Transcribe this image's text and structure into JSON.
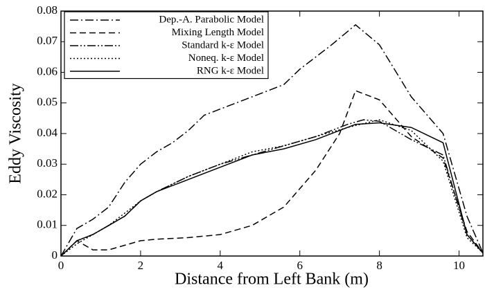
{
  "chart_data": {
    "type": "line",
    "xlabel": "Distance from Left Bank (m)",
    "ylabel": "Eddy Viscosity",
    "xlim": [
      0,
      10.6
    ],
    "ylim": [
      0,
      0.08
    ],
    "xticks": [
      0,
      2,
      4,
      6,
      8,
      10
    ],
    "yticks": [
      0,
      0.01,
      0.02,
      0.03,
      0.04,
      0.05,
      0.06,
      0.07,
      0.08
    ],
    "legend": "upper left",
    "series": [
      {
        "name": "Dep.-A. Parabolic Model",
        "color": "#000000",
        "dash": "dashdot",
        "x": [
          0,
          0.4,
          0.8,
          1.2,
          1.6,
          2,
          2.4,
          2.8,
          3.2,
          3.6,
          4,
          4.4,
          4.8,
          5.2,
          5.6,
          6,
          6.4,
          6.8,
          7.4,
          8,
          8.8,
          9.6,
          10.2,
          10.6
        ],
        "values": [
          0,
          0.009,
          0.012,
          0.016,
          0.024,
          0.03,
          0.034,
          0.037,
          0.041,
          0.046,
          0.048,
          0.05,
          0.052,
          0.054,
          0.056,
          0.061,
          0.065,
          0.069,
          0.0755,
          0.069,
          0.052,
          0.04,
          0.013,
          0.001
        ]
      },
      {
        "name": "Mixing Length Model",
        "color": "#000000",
        "dash": "dashed",
        "x": [
          0,
          0.4,
          0.8,
          1.2,
          2,
          2.4,
          3.2,
          4,
          4.8,
          5.6,
          6.4,
          7,
          7.4,
          8,
          8.8,
          9.6,
          10.2,
          10.6
        ],
        "values": [
          0,
          0.005,
          0.002,
          0.002,
          0.005,
          0.0055,
          0.006,
          0.007,
          0.01,
          0.016,
          0.028,
          0.04,
          0.054,
          0.051,
          0.039,
          0.032,
          0.008,
          0.001
        ]
      },
      {
        "name": "Standard k-ε Model",
        "color": "#000000",
        "dash": "dashdotdot",
        "x": [
          0,
          0.4,
          0.8,
          1.2,
          1.6,
          2,
          2.4,
          3.2,
          4,
          4.8,
          5.6,
          6.4,
          7.2,
          7.6,
          8,
          8.8,
          9.6,
          10.2,
          10.6
        ],
        "values": [
          0,
          0.005,
          0.007,
          0.01,
          0.013,
          0.018,
          0.021,
          0.026,
          0.03,
          0.033,
          0.036,
          0.039,
          0.043,
          0.0445,
          0.044,
          0.038,
          0.033,
          0.007,
          0.001
        ]
      },
      {
        "name": "Noneq. k-ε Model",
        "color": "#000000",
        "dash": "dotted",
        "x": [
          0,
          0.4,
          0.8,
          1.2,
          1.6,
          2,
          2.4,
          3.2,
          4,
          4.8,
          5.6,
          6.4,
          7.2,
          8,
          8.8,
          9.6,
          10.2,
          10.6
        ],
        "values": [
          0,
          0.004,
          0.007,
          0.01,
          0.014,
          0.018,
          0.021,
          0.026,
          0.03,
          0.034,
          0.036,
          0.039,
          0.042,
          0.0445,
          0.041,
          0.031,
          0.006,
          0.001
        ]
      },
      {
        "name": "RNG k-ε Model",
        "color": "#000000",
        "dash": "solid",
        "x": [
          0,
          0.4,
          0.8,
          1.2,
          1.6,
          2,
          2.4,
          3.2,
          4,
          4.8,
          5.6,
          6.4,
          7.4,
          8,
          8.8,
          9.6,
          10.2,
          10.6
        ],
        "values": [
          0,
          0.005,
          0.007,
          0.01,
          0.013,
          0.018,
          0.021,
          0.025,
          0.029,
          0.033,
          0.035,
          0.038,
          0.043,
          0.0435,
          0.042,
          0.037,
          0.007,
          0.001
        ]
      }
    ]
  }
}
